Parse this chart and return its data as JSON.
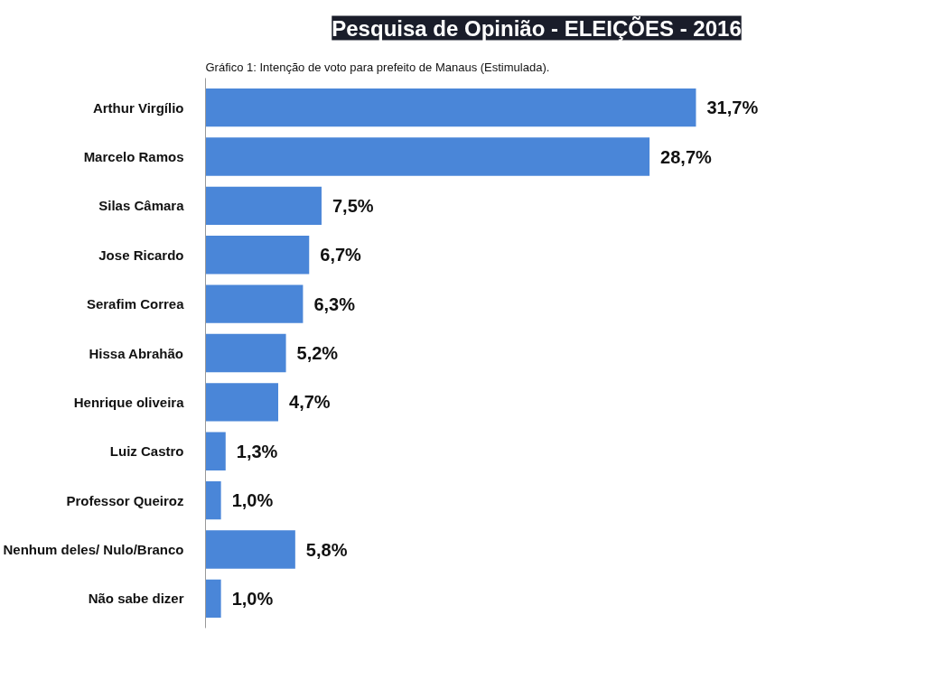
{
  "chart_data": {
    "type": "bar",
    "orientation": "horizontal",
    "title": "Pesquisa de Opinião - ELEIÇÕES - 2016",
    "subtitle": "Gráfico 1: Intenção de voto para prefeito de Manaus (Estimulada).",
    "categories": [
      "Arthur Virgílio",
      "Marcelo Ramos",
      "Silas Câmara",
      "Jose Ricardo",
      "Serafim Correa",
      "Hissa Abrahão",
      "Henrique oliveira",
      "Luiz Castro",
      "Professor Queiroz",
      "Nenhum deles/ Nulo/Branco",
      "Não sabe dizer"
    ],
    "values": [
      31.7,
      28.7,
      7.5,
      6.7,
      6.3,
      5.2,
      4.7,
      1.3,
      1.0,
      5.8,
      1.0
    ],
    "value_labels": [
      "31,7%",
      "28,7%",
      "7,5%",
      "6,7%",
      "6,3%",
      "5,2%",
      "4,7%",
      "1,3%",
      "1,0%",
      "5,8%",
      "1,0%"
    ],
    "color": "#4a86d8",
    "grid": false,
    "tick_labels": "y"
  }
}
